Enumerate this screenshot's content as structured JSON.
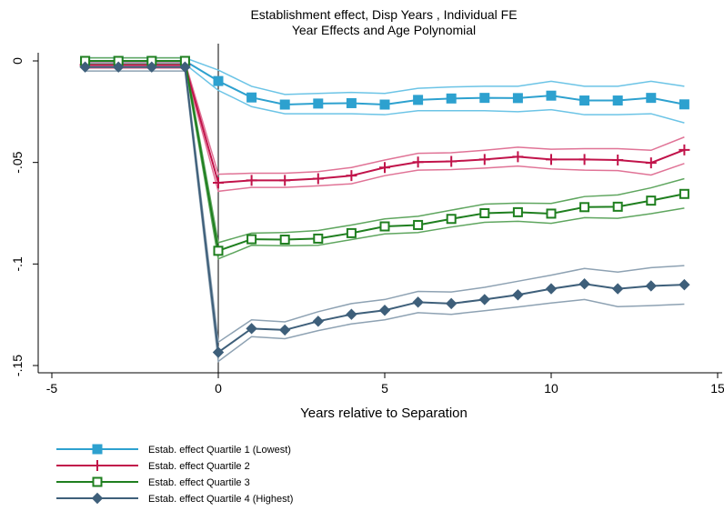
{
  "chart_data": {
    "type": "line",
    "title": "Establishment effect, Disp Years , Individual FE",
    "subtitle": "Year Effects and Age Polynomial",
    "xlabel": "Years relative to Separation",
    "ylabel": "",
    "xlim": [
      -5,
      15
    ],
    "ylim": [
      -0.15,
      0
    ],
    "x_ticks": [
      -5,
      0,
      5,
      10,
      15
    ],
    "x_tick_labels": [
      "-5",
      "0",
      "5",
      "10",
      "15"
    ],
    "y_ticks": [
      0,
      -0.05,
      -0.1,
      -0.15
    ],
    "y_tick_labels": [
      "0",
      "-.05",
      "-.1",
      "-.15"
    ],
    "vertical_reference_line": 0,
    "grid": false,
    "legend_position": "bottom-left",
    "x": [
      -4,
      -3,
      -2,
      -1,
      0,
      1,
      2,
      3,
      4,
      5,
      6,
      7,
      8,
      9,
      10,
      11,
      12,
      13,
      14
    ],
    "series": [
      {
        "name": "Estab. effect Quartile 1 (Lowest)",
        "color": "#2da1cf",
        "ci_color": "#6cc4e6",
        "marker": "filled-square",
        "values": [
          0,
          0,
          0,
          0,
          -0.0099,
          -0.018,
          -0.0215,
          -0.021,
          -0.0208,
          -0.0215,
          -0.0192,
          -0.0185,
          -0.0182,
          -0.0183,
          -0.0171,
          -0.0195,
          -0.0195,
          -0.0182,
          -0.0214
        ],
        "upper": [
          0.0015,
          0.0015,
          0.0015,
          0.0015,
          -0.0045,
          -0.0125,
          -0.0165,
          -0.016,
          -0.0155,
          -0.016,
          -0.0135,
          -0.0128,
          -0.0125,
          -0.0125,
          -0.01,
          -0.0125,
          -0.0125,
          -0.01,
          -0.0125
        ],
        "lower": [
          -0.0015,
          -0.0015,
          -0.0015,
          -0.0015,
          -0.0145,
          -0.0225,
          -0.026,
          -0.026,
          -0.026,
          -0.0265,
          -0.0245,
          -0.0245,
          -0.0245,
          -0.025,
          -0.024,
          -0.0265,
          -0.0265,
          -0.026,
          -0.0305
        ]
      },
      {
        "name": "Estab. effect Quartile 2",
        "color": "#c1134a",
        "ci_color": "#e07396",
        "marker": "plus",
        "values": [
          -0.002,
          -0.002,
          -0.002,
          -0.002,
          -0.06,
          -0.0588,
          -0.0588,
          -0.058,
          -0.0565,
          -0.0525,
          -0.0498,
          -0.0495,
          -0.0485,
          -0.0472,
          -0.0485,
          -0.0485,
          -0.0488,
          -0.0502,
          -0.0438
        ],
        "upper": [
          -0.0005,
          -0.0005,
          -0.0005,
          -0.0005,
          -0.0558,
          -0.0553,
          -0.0553,
          -0.0545,
          -0.0525,
          -0.0488,
          -0.0455,
          -0.0452,
          -0.044,
          -0.0425,
          -0.0435,
          -0.0432,
          -0.0432,
          -0.044,
          -0.0375
        ],
        "lower": [
          -0.0035,
          -0.0035,
          -0.0035,
          -0.0035,
          -0.0642,
          -0.0623,
          -0.0623,
          -0.0615,
          -0.0605,
          -0.0565,
          -0.0538,
          -0.0535,
          -0.0528,
          -0.0518,
          -0.0532,
          -0.0538,
          -0.054,
          -0.0562,
          -0.0505
        ]
      },
      {
        "name": "Estab. effect Quartile 3",
        "color": "#1f7f1f",
        "ci_color": "#5fa65f",
        "marker": "hollow-square",
        "values": [
          0,
          0,
          0,
          0,
          -0.0935,
          -0.0878,
          -0.088,
          -0.0875,
          -0.0848,
          -0.0815,
          -0.0808,
          -0.0778,
          -0.075,
          -0.0745,
          -0.0752,
          -0.072,
          -0.0718,
          -0.0688,
          -0.0655
        ],
        "upper": [
          0.0015,
          0.0015,
          0.0015,
          0.0015,
          -0.0895,
          -0.0848,
          -0.0845,
          -0.0835,
          -0.0808,
          -0.0778,
          -0.0765,
          -0.0735,
          -0.0705,
          -0.07,
          -0.0702,
          -0.0668,
          -0.066,
          -0.0625,
          -0.058
        ],
        "lower": [
          -0.0015,
          -0.0015,
          -0.0015,
          -0.0015,
          -0.0975,
          -0.0908,
          -0.091,
          -0.0908,
          -0.088,
          -0.0852,
          -0.0845,
          -0.0818,
          -0.0795,
          -0.079,
          -0.08,
          -0.0772,
          -0.0775,
          -0.0752,
          -0.0725
        ]
      },
      {
        "name": "Estab. effect Quartile 4 (Highest)",
        "color": "#3e5f7a",
        "ci_color": "#8ea2b3",
        "marker": "filled-diamond",
        "values": [
          -0.003,
          -0.003,
          -0.003,
          -0.003,
          -0.1435,
          -0.1318,
          -0.1325,
          -0.1282,
          -0.1248,
          -0.1228,
          -0.1188,
          -0.1195,
          -0.1175,
          -0.1152,
          -0.1122,
          -0.1098,
          -0.1122,
          -0.1108,
          -0.1102
        ],
        "upper": [
          -0.001,
          -0.001,
          -0.001,
          -0.001,
          -0.1385,
          -0.1275,
          -0.1285,
          -0.1235,
          -0.1195,
          -0.1175,
          -0.1135,
          -0.1138,
          -0.1115,
          -0.1085,
          -0.1055,
          -0.1022,
          -0.104,
          -0.1018,
          -0.1008
        ],
        "lower": [
          -0.005,
          -0.005,
          -0.005,
          -0.005,
          -0.148,
          -0.1358,
          -0.1368,
          -0.1328,
          -0.1295,
          -0.1275,
          -0.124,
          -0.1248,
          -0.123,
          -0.1212,
          -0.1192,
          -0.1175,
          -0.121,
          -0.1205,
          -0.1198
        ]
      }
    ]
  }
}
